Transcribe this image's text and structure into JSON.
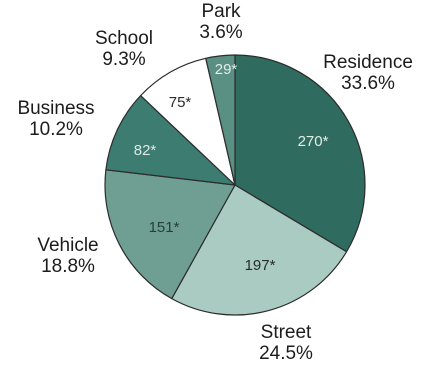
{
  "chart_data": {
    "type": "pie",
    "title": "",
    "start_angle_deg": 0,
    "direction": "clockwise",
    "slices": [
      {
        "name": "Residence",
        "count": 270,
        "count_label": "270*",
        "percent": 33.6,
        "percent_label": "33.6%",
        "color": "#2f6b5f",
        "label_color": "#e4ece8"
      },
      {
        "name": "Street",
        "count": 197,
        "count_label": "197*",
        "percent": 24.5,
        "percent_label": "24.5%",
        "color": "#a9cbc2",
        "label_color": "#2a2a2a"
      },
      {
        "name": "Vehicle",
        "count": 151,
        "count_label": "151*",
        "percent": 18.8,
        "percent_label": "18.8%",
        "color": "#6f9f93",
        "label_color": "#26403a"
      },
      {
        "name": "Business",
        "count": 82,
        "count_label": "82*",
        "percent": 10.2,
        "percent_label": "10.2%",
        "color": "#3d7c70",
        "label_color": "#dce8e4"
      },
      {
        "name": "School",
        "count": 75,
        "count_label": "75*",
        "percent": 9.3,
        "percent_label": "9.3%",
        "color": "#ffffff",
        "label_color": "#2a2a2a"
      },
      {
        "name": "Park",
        "count": 29,
        "count_label": "29*",
        "percent": 3.6,
        "percent_label": "3.6%",
        "color": "#5a8f83",
        "label_color": "#e4ece8"
      }
    ]
  }
}
